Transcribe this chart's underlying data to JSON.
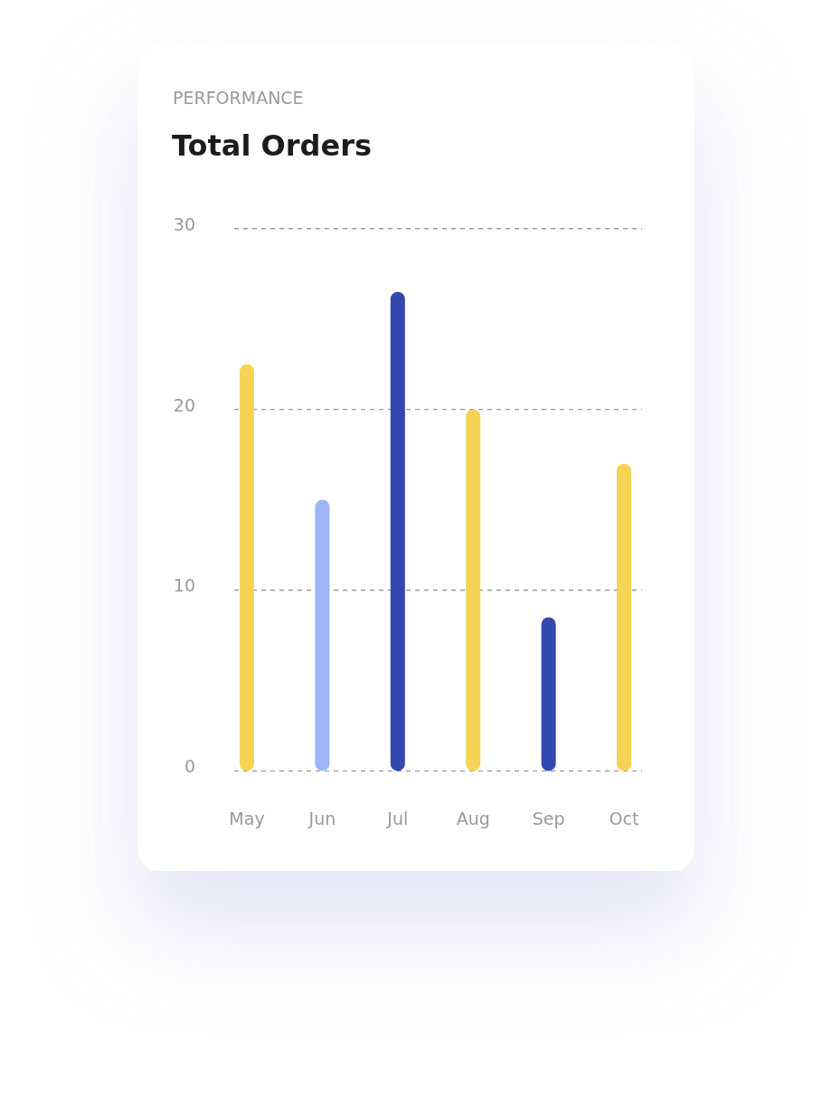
{
  "chart_data": {
    "type": "bar",
    "subtitle": "PERFORMANCE",
    "title": "Total Orders",
    "categories": [
      "May",
      "Jun",
      "Jul",
      "Aug",
      "Sep",
      "Oct"
    ],
    "values": [
      22.5,
      15,
      26.5,
      20,
      8.5,
      17
    ],
    "colors": [
      "#f6d354",
      "#9db5f8",
      "#3247b0",
      "#f6d354",
      "#3247b0",
      "#f6d354"
    ],
    "ylim": [
      0,
      30
    ],
    "yticks": [
      0,
      10,
      20,
      30
    ],
    "grid": "y"
  }
}
